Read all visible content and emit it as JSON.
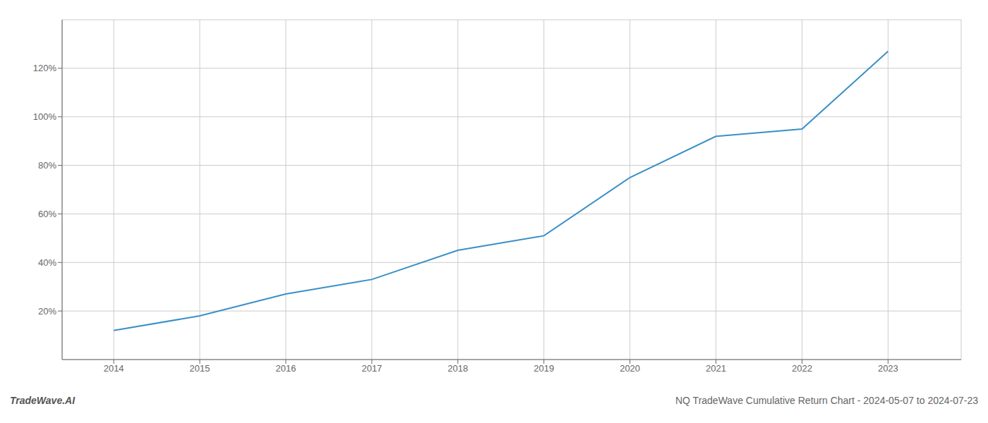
{
  "chart_data": {
    "type": "line",
    "title": "NQ TradeWave Cumulative Return Chart - 2024-05-07 to 2024-07-23",
    "annotations": [
      "TradeWave.AI"
    ],
    "x": [
      2014,
      2015,
      2016,
      2017,
      2018,
      2019,
      2020,
      2021,
      2022,
      2023
    ],
    "values": [
      12,
      18,
      27,
      33,
      45,
      51,
      75,
      92,
      95,
      127
    ],
    "color": "#3a8fc7",
    "xlim": [
      2013.4,
      2023.85
    ],
    "xticks": [
      2014,
      2015,
      2016,
      2017,
      2018,
      2019,
      2020,
      2021,
      2022,
      2023
    ],
    "ylim": [
      0,
      140
    ],
    "yticks": [
      {
        "value": 20,
        "label": "20%"
      },
      {
        "value": 40,
        "label": "40%"
      },
      {
        "value": 60,
        "label": "60%"
      },
      {
        "value": 80,
        "label": "80%"
      },
      {
        "value": 100,
        "label": "100%"
      },
      {
        "value": 120,
        "label": "120%"
      }
    ],
    "grid": true
  }
}
